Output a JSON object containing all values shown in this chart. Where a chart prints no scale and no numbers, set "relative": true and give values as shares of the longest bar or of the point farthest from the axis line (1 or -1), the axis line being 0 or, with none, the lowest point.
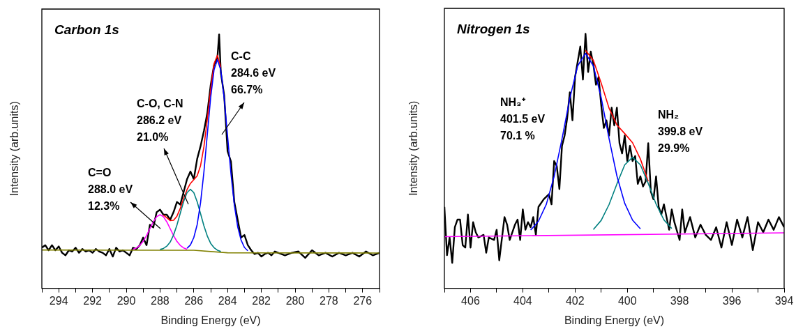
{
  "chart_data": [
    {
      "type": "line",
      "title": "Carbon 1s",
      "xlabel": "Binding Energy (eV)",
      "ylabel": "Intensity (arb.units)",
      "relative": true,
      "legend": false,
      "marker": "none",
      "grid": false,
      "tick_labels": "x",
      "xlim": [
        295,
        275
      ],
      "xticks": [
        {
          "value": 295,
          "label": null
        },
        294,
        {
          "value": 293,
          "label": null
        },
        292,
        {
          "value": 291,
          "label": null
        },
        290,
        {
          "value": 289,
          "label": null
        },
        288,
        {
          "value": 287,
          "label": null
        },
        286,
        {
          "value": 285,
          "label": null
        },
        284,
        {
          "value": 283,
          "label": null
        },
        282,
        {
          "value": 281,
          "label": null
        },
        280,
        {
          "value": 279,
          "label": null
        },
        278,
        {
          "value": 277,
          "label": null
        },
        276,
        {
          "value": 275,
          "label": null
        }
      ],
      "series": [
        {
          "color": "#000000",
          "x": [
            295.0,
            294.8,
            294.6,
            294.4,
            294.2,
            294.0,
            293.8,
            293.6,
            293.4,
            293.2,
            293.0,
            292.8,
            292.6,
            292.4,
            292.2,
            292.0,
            291.8,
            291.6,
            291.4,
            291.2,
            291.0,
            290.8,
            290.6,
            290.4,
            290.2,
            290.0,
            289.8,
            289.6,
            289.4,
            289.2,
            289.0,
            288.8,
            288.6,
            288.4,
            288.2,
            288.0,
            287.8,
            287.6,
            287.4,
            287.2,
            287.0,
            286.8,
            286.6,
            286.4,
            286.2,
            286.0,
            285.8,
            285.6,
            285.4,
            285.2,
            285.0,
            284.8,
            284.6,
            284.5,
            284.4,
            284.2,
            284.0,
            283.8,
            283.6,
            283.4,
            283.2,
            283.0,
            282.8,
            282.6,
            282.4,
            282.2,
            282.0,
            281.8,
            281.6,
            281.4,
            281.2,
            281.0,
            280.6,
            280.2,
            279.8,
            279.4,
            279.0,
            278.6,
            278.2,
            277.8,
            277.4,
            277.0,
            276.6,
            276.2,
            275.8,
            275.4,
            275.0
          ],
          "values": [
            0.16,
            0.17,
            0.15,
            0.17,
            0.15,
            0.165,
            0.14,
            0.13,
            0.15,
            0.145,
            0.16,
            0.14,
            0.155,
            0.145,
            0.15,
            0.14,
            0.155,
            0.145,
            0.14,
            0.13,
            0.155,
            0.125,
            0.16,
            0.145,
            0.15,
            0.14,
            0.13,
            0.16,
            0.155,
            0.17,
            0.2,
            0.17,
            0.25,
            0.24,
            0.3,
            0.31,
            0.29,
            0.29,
            0.27,
            0.3,
            0.34,
            0.33,
            0.38,
            0.43,
            0.46,
            0.43,
            0.51,
            0.56,
            0.62,
            0.69,
            0.8,
            0.88,
            0.91,
            1.0,
            0.85,
            0.76,
            0.54,
            0.5,
            0.34,
            0.27,
            0.2,
            0.21,
            0.17,
            0.15,
            0.135,
            0.14,
            0.125,
            0.135,
            0.14,
            0.13,
            0.145,
            0.14,
            0.13,
            0.14,
            0.145,
            0.12,
            0.15,
            0.13,
            0.14,
            0.125,
            0.14,
            0.13,
            0.14,
            0.125,
            0.145,
            0.13,
            0.14
          ]
        },
        {
          "color": "#ff0000",
          "x": [
            287.8,
            287.6,
            287.4,
            287.2,
            287.0,
            286.8,
            286.6,
            286.4,
            286.2,
            286.0,
            285.8,
            285.6,
            285.4,
            285.2,
            285.0,
            284.8,
            284.6,
            284.4
          ],
          "values": [
            0.289,
            0.278,
            0.267,
            0.268,
            0.284,
            0.315,
            0.354,
            0.389,
            0.413,
            0.428,
            0.443,
            0.483,
            0.558,
            0.666,
            0.784,
            0.885,
            0.918,
            0.87
          ]
        },
        {
          "color": "#808000",
          "x": [
            295,
            286,
            284,
            275
          ],
          "values": [
            0.151,
            0.15,
            0.14,
            0.139
          ]
        },
        {
          "color": "#ff00ff",
          "x": [
            289.6,
            289.4,
            289.2,
            289.0,
            288.8,
            288.6,
            288.4,
            288.2,
            288.0,
            287.8,
            287.6,
            287.4,
            287.2,
            287.0,
            286.8,
            286.6,
            286.4
          ],
          "values": [
            0.154,
            0.159,
            0.169,
            0.185,
            0.208,
            0.235,
            0.262,
            0.282,
            0.29,
            0.282,
            0.262,
            0.235,
            0.208,
            0.185,
            0.169,
            0.159,
            0.154
          ]
        },
        {
          "color": "#008080",
          "x": [
            288.0,
            287.8,
            287.6,
            287.4,
            287.2,
            287.0,
            286.8,
            286.6,
            286.4,
            286.2,
            286.0,
            285.8,
            285.6,
            285.4,
            285.2,
            285.0,
            284.8,
            284.6,
            284.4
          ],
          "values": [
            0.153,
            0.157,
            0.166,
            0.182,
            0.21,
            0.249,
            0.296,
            0.342,
            0.377,
            0.39,
            0.377,
            0.341,
            0.294,
            0.246,
            0.206,
            0.177,
            0.16,
            0.15,
            0.145
          ]
        },
        {
          "color": "#0000ff",
          "x": [
            286.4,
            286.2,
            286.0,
            285.8,
            285.6,
            285.4,
            285.2,
            285.0,
            284.8,
            284.6,
            284.4,
            284.2,
            284.0,
            283.8,
            283.6,
            283.4,
            283.2,
            283.0,
            282.8
          ],
          "values": [
            0.158,
            0.171,
            0.2,
            0.251,
            0.337,
            0.459,
            0.606,
            0.752,
            0.861,
            0.901,
            0.859,
            0.748,
            0.6,
            0.452,
            0.329,
            0.242,
            0.19,
            0.161,
            0.148
          ]
        }
      ],
      "annotations": [
        "C=O\n288.0 eV\n12.3%",
        "C-O, C-N\n286.2 eV\n21.0%",
        "C-C\n284.6 eV\n66.7%"
      ]
    },
    {
      "type": "line",
      "title": "Nitrogen 1s",
      "xlabel": "Binding Energy (eV)",
      "ylabel": "Intensity (arb.units)",
      "relative": true,
      "legend": false,
      "marker": "none",
      "grid": false,
      "tick_labels": "x",
      "xlim": [
        407,
        394
      ],
      "xticks": [
        {
          "value": 407,
          "label": null
        },
        406,
        {
          "value": 405,
          "label": null
        },
        404,
        {
          "value": 403,
          "label": null
        },
        402,
        {
          "value": 401,
          "label": null
        },
        400,
        {
          "value": 399,
          "label": null
        },
        398,
        {
          "value": 397,
          "label": null
        },
        396,
        {
          "value": 395,
          "label": null
        },
        394
      ],
      "series": [
        {
          "color": "#000000",
          "x": [
            407.0,
            406.9,
            406.8,
            406.7,
            406.6,
            406.5,
            406.4,
            406.3,
            406.2,
            406.1,
            406.0,
            405.9,
            405.8,
            405.7,
            405.5,
            405.4,
            405.3,
            405.1,
            405.0,
            404.9,
            404.7,
            404.6,
            404.5,
            404.3,
            404.2,
            404.1,
            404.0,
            403.9,
            403.8,
            403.7,
            403.6,
            403.5,
            403.4,
            403.2,
            403.0,
            402.9,
            402.8,
            402.7,
            402.6,
            402.5,
            402.4,
            402.3,
            402.2,
            402.1,
            402.0,
            401.9,
            401.8,
            401.7,
            401.6,
            401.5,
            401.4,
            401.3,
            401.2,
            401.1,
            401.0,
            400.9,
            400.8,
            400.7,
            400.6,
            400.5,
            400.4,
            400.3,
            400.2,
            400.1,
            400.0,
            399.9,
            399.8,
            399.7,
            399.6,
            399.5,
            399.4,
            399.3,
            399.2,
            399.1,
            399.0,
            398.9,
            398.8,
            398.7,
            398.6,
            398.5,
            398.4,
            398.3,
            398.2,
            398.0,
            397.9,
            397.8,
            397.6,
            397.4,
            397.2,
            397.0,
            396.8,
            396.6,
            396.4,
            396.2,
            396.0,
            395.8,
            395.6,
            395.4,
            395.2,
            395.0,
            394.8,
            394.6,
            394.4,
            394.2,
            394.0
          ],
          "values": [
            0.32,
            0.13,
            0.2,
            0.1,
            0.24,
            0.27,
            0.27,
            0.17,
            0.16,
            0.29,
            0.16,
            0.26,
            0.22,
            0.2,
            0.21,
            0.14,
            0.2,
            0.19,
            0.23,
            0.11,
            0.28,
            0.25,
            0.19,
            0.25,
            0.27,
            0.19,
            0.31,
            0.23,
            0.26,
            0.24,
            0.28,
            0.21,
            0.32,
            0.35,
            0.37,
            0.33,
            0.5,
            0.48,
            0.39,
            0.56,
            0.6,
            0.67,
            0.77,
            0.66,
            0.83,
            0.89,
            0.95,
            0.82,
            1.0,
            0.85,
            0.93,
            0.88,
            0.8,
            0.83,
            0.72,
            0.63,
            0.66,
            0.6,
            0.71,
            0.64,
            0.71,
            0.57,
            0.53,
            0.6,
            0.5,
            0.56,
            0.5,
            0.52,
            0.41,
            0.44,
            0.4,
            0.42,
            0.57,
            0.38,
            0.35,
            0.44,
            0.32,
            0.29,
            0.33,
            0.28,
            0.23,
            0.31,
            0.26,
            0.19,
            0.31,
            0.22,
            0.28,
            0.2,
            0.25,
            0.21,
            0.19,
            0.24,
            0.16,
            0.26,
            0.17,
            0.27,
            0.2,
            0.28,
            0.15,
            0.26,
            0.22,
            0.27,
            0.23,
            0.28,
            0.24
          ]
        },
        {
          "color": "#ff0000",
          "x": [
            401.6,
            401.3,
            401.0,
            400.7,
            400.4,
            400.1,
            399.8,
            399.5,
            399.2
          ],
          "values": [
            0.935,
            0.896,
            0.806,
            0.708,
            0.642,
            0.608,
            0.572,
            0.508,
            0.42
          ]
        },
        {
          "color": "#008080",
          "x": [
            401.3,
            401.0,
            400.7,
            400.4,
            400.1,
            399.8,
            399.5,
            399.2,
            398.9,
            398.6,
            398.3
          ],
          "values": [
            0.231,
            0.267,
            0.329,
            0.41,
            0.485,
            0.515,
            0.485,
            0.412,
            0.331,
            0.269,
            0.235
          ]
        },
        {
          "color": "#0000ff",
          "x": [
            403.7,
            403.4,
            403.1,
            402.8,
            402.5,
            402.2,
            401.9,
            401.6,
            401.3,
            401.0,
            400.7,
            400.4,
            400.1,
            399.8,
            399.5
          ],
          "values": [
            0.229,
            0.264,
            0.33,
            0.44,
            0.587,
            0.747,
            0.874,
            0.923,
            0.874,
            0.749,
            0.589,
            0.442,
            0.334,
            0.268,
            0.234
          ]
        },
        {
          "color": "#ff00ff",
          "x": [
            407,
            394
          ],
          "values": [
            0.203,
            0.218
          ]
        }
      ],
      "annotations": [
        "NH₃⁺\n401.5 eV\n70.1 %",
        "NH₂\n399.8 eV\n29.9%"
      ]
    }
  ]
}
